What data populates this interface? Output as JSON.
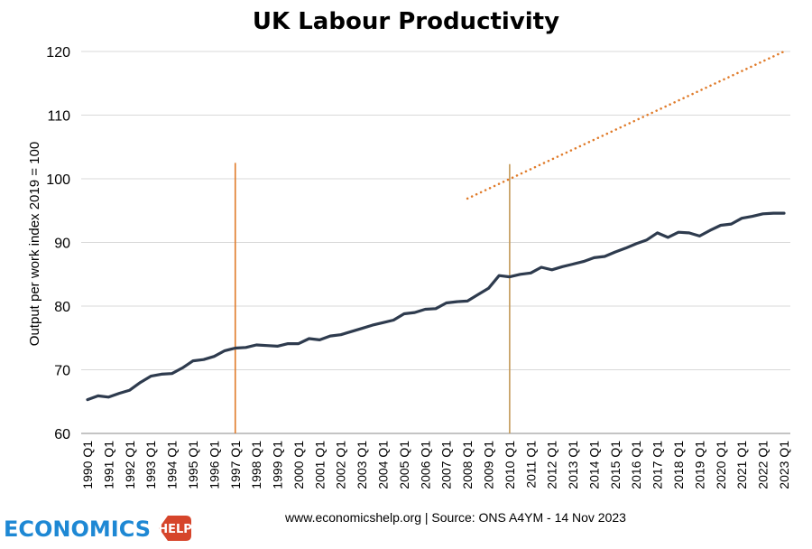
{
  "chart_data": {
    "type": "line",
    "title": "UK Labour Productivity",
    "ylabel": "Output per work index 2019 = 100",
    "xlabel": "",
    "ylim": [
      60,
      120
    ],
    "yticks": [
      60,
      70,
      80,
      90,
      100,
      110,
      120
    ],
    "x_tick_labels": [
      "1990 Q1",
      "1991 Q1",
      "1992 Q1",
      "1993 Q1",
      "1994 Q1",
      "1995 Q1",
      "1996 Q1",
      "1997 Q1",
      "1998 Q1",
      "1999 Q1",
      "2000 Q1",
      "2001 Q1",
      "2002 Q1",
      "2003 Q1",
      "2004 Q1",
      "2005 Q1",
      "2006 Q1",
      "2007 Q1",
      "2008 Q1",
      "2009 Q1",
      "2010 Q1",
      "2011 Q1",
      "2012 Q1",
      "2013 Q1",
      "2014 Q1",
      "2015 Q1",
      "2016 Q1",
      "2017 Q1",
      "2018 Q1",
      "2019 Q1",
      "2020 Q1",
      "2021 Q1",
      "2022 Q1",
      "2023 Q1"
    ],
    "grid": "horizontal",
    "series": [
      {
        "color": "#2e3b4e",
        "style": "solid",
        "points": [
          [
            "1990 Q1",
            65.3
          ],
          [
            "1990 Q3",
            65.9
          ],
          [
            "1991 Q1",
            65.7
          ],
          [
            "1991 Q3",
            66.3
          ],
          [
            "1992 Q1",
            66.8
          ],
          [
            "1992 Q3",
            68.0
          ],
          [
            "1993 Q1",
            69.0
          ],
          [
            "1993 Q3",
            69.3
          ],
          [
            "1994 Q1",
            69.4
          ],
          [
            "1994 Q3",
            70.3
          ],
          [
            "1995 Q1",
            71.4
          ],
          [
            "1995 Q3",
            71.6
          ],
          [
            "1996 Q1",
            72.1
          ],
          [
            "1996 Q3",
            73.0
          ],
          [
            "1997 Q1",
            73.4
          ],
          [
            "1997 Q3",
            73.5
          ],
          [
            "1998 Q1",
            73.9
          ],
          [
            "1998 Q3",
            73.8
          ],
          [
            "1999 Q1",
            73.7
          ],
          [
            "1999 Q3",
            74.1
          ],
          [
            "2000 Q1",
            74.1
          ],
          [
            "2000 Q3",
            74.9
          ],
          [
            "2001 Q1",
            74.7
          ],
          [
            "2001 Q3",
            75.3
          ],
          [
            "2002 Q1",
            75.5
          ],
          [
            "2002 Q3",
            76.0
          ],
          [
            "2003 Q1",
            76.5
          ],
          [
            "2003 Q3",
            77.0
          ],
          [
            "2004 Q1",
            77.4
          ],
          [
            "2004 Q3",
            77.8
          ],
          [
            "2005 Q1",
            78.8
          ],
          [
            "2005 Q3",
            79.0
          ],
          [
            "2006 Q1",
            79.5
          ],
          [
            "2006 Q3",
            79.6
          ],
          [
            "2007 Q1",
            80.5
          ],
          [
            "2007 Q3",
            80.7
          ],
          [
            "2008 Q1",
            80.8
          ],
          [
            "2008 Q3",
            81.8
          ],
          [
            "2009 Q1",
            82.8
          ],
          [
            "2009 Q3",
            84.8
          ],
          [
            "2010 Q1",
            84.6
          ],
          [
            "2010 Q3",
            85.0
          ],
          [
            "2011 Q1",
            85.2
          ],
          [
            "2011 Q3",
            86.1
          ],
          [
            "2012 Q1",
            85.7
          ],
          [
            "2012 Q3",
            86.2
          ],
          [
            "2013 Q1",
            86.6
          ],
          [
            "2013 Q3",
            87.0
          ],
          [
            "2014 Q1",
            87.6
          ],
          [
            "2014 Q3",
            87.8
          ],
          [
            "2015 Q1",
            88.5
          ],
          [
            "2015 Q3",
            89.1
          ],
          [
            "2016 Q1",
            89.8
          ],
          [
            "2016 Q3",
            90.4
          ],
          [
            "2017 Q1",
            91.5
          ],
          [
            "2017 Q3",
            90.8
          ],
          [
            "2018 Q1",
            91.6
          ],
          [
            "2018 Q3",
            91.5
          ],
          [
            "2019 Q1",
            91.0
          ],
          [
            "2019 Q3",
            91.9
          ],
          [
            "2020 Q1",
            92.7
          ],
          [
            "2020 Q3",
            92.9
          ],
          [
            "2021 Q1",
            93.8
          ],
          [
            "2021 Q3",
            94.1
          ],
          [
            "2022 Q1",
            94.5
          ],
          [
            "2022 Q3",
            94.6
          ],
          [
            "2023 Q1",
            94.6
          ]
        ]
      },
      {
        "color": "#e07b2a",
        "style": "dotted",
        "points": [
          [
            "2008 Q1",
            96.9
          ],
          [
            "2023 Q1",
            120.0
          ]
        ]
      }
    ],
    "vertical_lines": [
      {
        "x": "1997 Q1",
        "color": "#e07b2a",
        "top": 102.5
      },
      {
        "x": "2010 Q1",
        "color": "#c49a5a",
        "top": 102.3
      }
    ]
  },
  "source_text": "www.economicshelp.org | Source: ONS A4YM - 14 Nov 2023",
  "logo": {
    "word": "ECONOMICS",
    "help": "HELP"
  }
}
